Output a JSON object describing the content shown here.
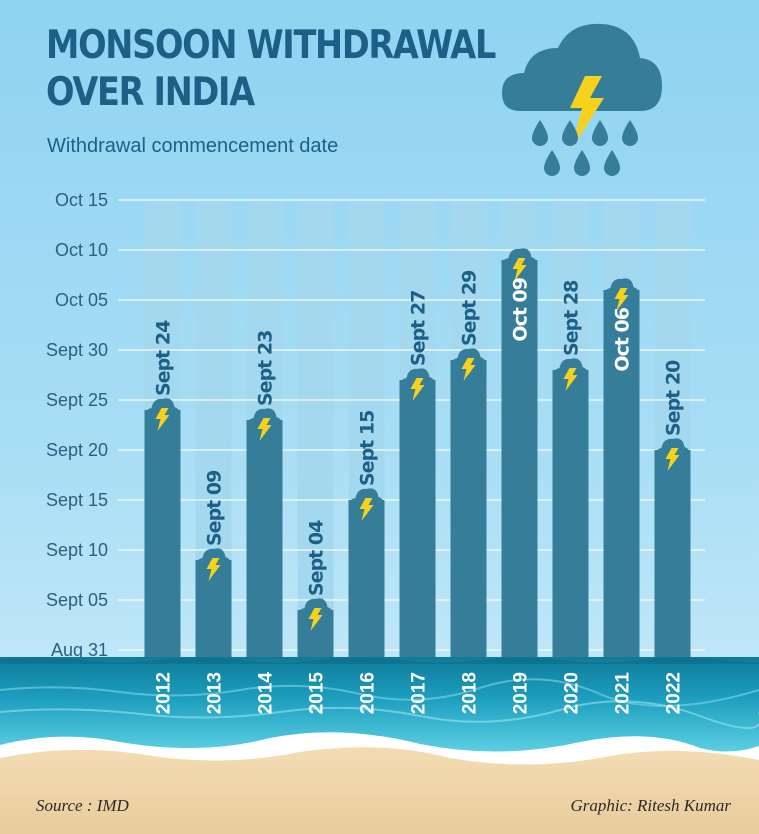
{
  "header": {
    "title": "MONSOON WITHDRAWAL\nOVER INDIA",
    "subtitle": "Withdrawal commencement date"
  },
  "footer": {
    "source": "Source : IMD",
    "credit": "Graphic: Ritesh Kumar"
  },
  "colors": {
    "bar": "#357d98",
    "track": "#a3d8ee",
    "cloud": "#357d98",
    "bolt": "#f6d21c",
    "label": "#1d5f86",
    "axis_text": "#2e5f80"
  },
  "icons": [
    "rain-cloud-lightning-icon",
    "storm-cloud-icon",
    "lightning-icon",
    "sea-wave-icon",
    "sand-beach-icon"
  ],
  "chart_data": {
    "type": "bar",
    "title": "Withdrawal commencement date",
    "xlabel": "",
    "ylabel": "",
    "categories": [
      "2012",
      "2013",
      "2014",
      "2015",
      "2016",
      "2017",
      "2018",
      "2019",
      "2020",
      "2021",
      "2022"
    ],
    "values": [
      "Sept 24",
      "Sept 09",
      "Sept 23",
      "Sept 04",
      "Sept 15",
      "Sept 27",
      "Sept 29",
      "Oct 09",
      "Sept 28",
      "Oct 06",
      "Sept 20"
    ],
    "value_labels": [
      "Sept 24",
      "Sept 09",
      "Sept 23",
      "Sept 04",
      "Sept 15",
      "Sept 27",
      "Sept 29",
      "Oct 09",
      "Sept 28",
      "Oct 06",
      "Sept 20"
    ],
    "label_inside_bar": [
      false,
      false,
      false,
      false,
      false,
      false,
      false,
      true,
      false,
      true,
      false
    ],
    "yticks": [
      "Aug 31",
      "Sept 05",
      "Sept 10",
      "Sept 15",
      "Sept 20",
      "Sept 25",
      "Sept 30",
      "Oct 05",
      "Oct 10",
      "Oct 15"
    ],
    "ylim": [
      "Aug 31",
      "Oct 15"
    ],
    "grid": true,
    "legend": "none"
  }
}
